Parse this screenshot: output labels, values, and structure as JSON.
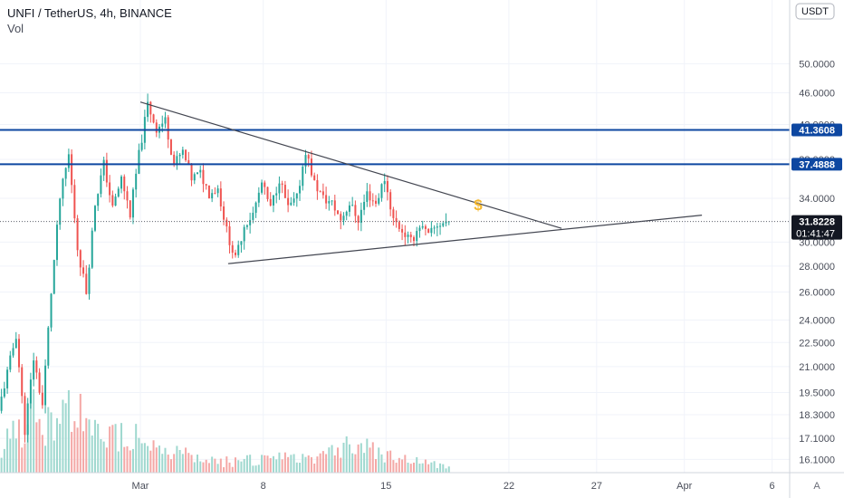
{
  "legend": {
    "title": "UNFI / TetherUS, 4h, BINANCE",
    "volume_label": "Vol"
  },
  "price_scale": {
    "currency_label": "USDT",
    "mode_button": "A"
  },
  "colors": {
    "up": "#26a69a",
    "down": "#ef5350",
    "up_volume": "#9fd8cf",
    "down_volume": "#f4a8a6",
    "level_line": "#0d47a1",
    "trendline": "#434651",
    "grid": "#f0f3fa",
    "dollar_icon": "#f5b82e"
  },
  "chart_data": {
    "type": "candlestick",
    "symbol": "UNFI / TetherUS",
    "interval": "4h",
    "exchange": "BINANCE",
    "y_axis": {
      "scale": "log",
      "range": [
        15.5,
        60
      ],
      "tick_labels": [
        "16.1000",
        "17.1000",
        "18.3000",
        "19.5000",
        "21.0000",
        "22.5000",
        "24.0000",
        "26.0000",
        "28.0000",
        "30.0000",
        "34.0000",
        "38.0000",
        "42.0000",
        "46.0000",
        "50.0000"
      ]
    },
    "x_axis": {
      "range": [
        "2021-02-21",
        "2021-04-07"
      ],
      "tick_labels": [
        {
          "label": "Mar",
          "date": "2021-03-01"
        },
        {
          "label": "8",
          "date": "2021-03-08"
        },
        {
          "label": "15",
          "date": "2021-03-15"
        },
        {
          "label": "22",
          "date": "2021-03-22"
        },
        {
          "label": "27",
          "date": "2021-03-27"
        },
        {
          "label": "Apr",
          "date": "2021-04-01"
        },
        {
          "label": "6",
          "date": "2021-04-06"
        }
      ]
    },
    "price_path": [
      [
        "2021-02-21",
        18.5
      ],
      [
        "2021-02-22",
        23.0
      ],
      [
        "2021-02-22T12:00",
        17.5
      ],
      [
        "2021-02-23",
        21.5
      ],
      [
        "2021-02-23T12:00",
        18.8
      ],
      [
        "2021-02-24",
        26.0
      ],
      [
        "2021-02-24T12:00",
        34.0
      ],
      [
        "2021-02-25",
        38.5
      ],
      [
        "2021-02-25T12:00",
        29.5
      ],
      [
        "2021-02-26",
        26.0
      ],
      [
        "2021-02-26T12:00",
        33.5
      ],
      [
        "2021-02-27",
        37.5
      ],
      [
        "2021-02-27T12:00",
        33.0
      ],
      [
        "2021-02-28",
        36.0
      ],
      [
        "2021-02-28T12:00",
        32.5
      ],
      [
        "2021-03-01",
        38.5
      ],
      [
        "2021-03-01T12:00",
        44.5
      ],
      [
        "2021-03-02",
        41.5
      ],
      [
        "2021-03-02T12:00",
        42.5
      ],
      [
        "2021-03-03",
        37.5
      ],
      [
        "2021-03-03T12:00",
        38.8
      ],
      [
        "2021-03-04",
        36.0
      ],
      [
        "2021-03-04T12:00",
        36.5
      ],
      [
        "2021-03-05",
        34.5
      ],
      [
        "2021-03-05T12:00",
        35.0
      ],
      [
        "2021-03-06",
        31.0
      ],
      [
        "2021-03-06T12:00",
        28.5
      ],
      [
        "2021-03-07",
        31.5
      ],
      [
        "2021-03-07T12:00",
        32.5
      ],
      [
        "2021-03-08",
        35.5
      ],
      [
        "2021-03-08T12:00",
        33.0
      ],
      [
        "2021-03-09",
        36.0
      ],
      [
        "2021-03-09T12:00",
        33.0
      ],
      [
        "2021-03-10",
        34.0
      ],
      [
        "2021-03-10T12:00",
        39.0
      ],
      [
        "2021-03-11",
        35.5
      ],
      [
        "2021-03-11T12:00",
        34.0
      ],
      [
        "2021-03-12",
        33.5
      ],
      [
        "2021-03-12T12:00",
        32.0
      ],
      [
        "2021-03-13",
        33.5
      ],
      [
        "2021-03-13T12:00",
        32.0
      ],
      [
        "2021-03-14",
        34.5
      ],
      [
        "2021-03-14T12:00",
        33.5
      ],
      [
        "2021-03-15",
        36.0
      ],
      [
        "2021-03-15T12:00",
        32.0
      ],
      [
        "2021-03-16",
        31.0
      ],
      [
        "2021-03-16T12:00",
        30.0
      ],
      [
        "2021-03-17",
        31.5
      ],
      [
        "2021-03-17T12:00",
        30.5
      ],
      [
        "2021-03-18",
        31.5
      ],
      [
        "2021-03-18T12:00",
        31.8
      ]
    ],
    "volume_profile": [
      [
        "2021-02-21",
        0.35
      ],
      [
        "2021-02-23",
        0.9
      ],
      [
        "2021-02-24",
        0.55
      ],
      [
        "2021-02-25",
        1.0
      ],
      [
        "2021-02-26",
        0.5
      ],
      [
        "2021-03-01",
        0.55
      ],
      [
        "2021-03-02",
        0.3
      ],
      [
        "2021-03-05",
        0.15
      ],
      [
        "2021-03-10",
        0.2
      ],
      [
        "2021-03-13",
        0.4
      ],
      [
        "2021-03-16",
        0.18
      ],
      [
        "2021-03-18",
        0.1
      ]
    ],
    "horizontal_levels": [
      {
        "price": 41.3608,
        "label": "41.3608"
      },
      {
        "price": 37.4888,
        "label": "37.4888"
      }
    ],
    "trendlines": [
      {
        "points": [
          [
            "2021-03-01",
            44.8
          ],
          [
            "2021-03-25",
            31.2
          ]
        ]
      },
      {
        "points": [
          [
            "2021-03-06",
            28.2
          ],
          [
            "2021-04-02",
            32.4
          ]
        ]
      }
    ],
    "current_price": {
      "price": 31.8228,
      "label": "31.8228",
      "countdown": "01:41:47"
    },
    "annotation": {
      "symbol": "$",
      "date": "2021-03-20",
      "price": 33.5
    }
  }
}
